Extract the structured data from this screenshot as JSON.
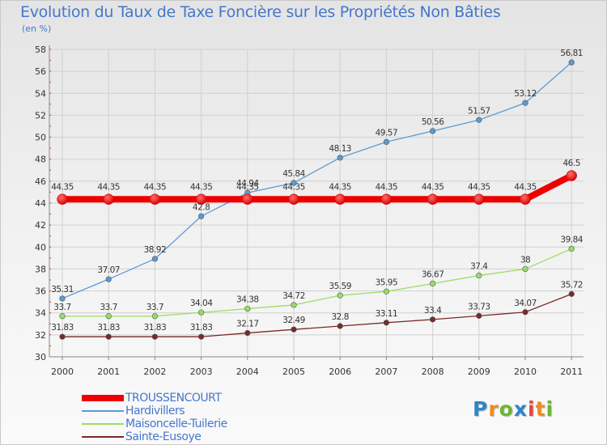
{
  "title": "Evolution du Taux de Taxe Foncière sur les Propriétés Non Bâties",
  "unit_label": "(en %)",
  "logo": {
    "letters": [
      "P",
      "r",
      "o",
      "x",
      "i",
      "t",
      "i"
    ],
    "colors": [
      "#2d85c8",
      "#f08a1c",
      "#6ab533",
      "#2d85c8",
      "#e8453c",
      "#f08a1c",
      "#6ab533"
    ]
  },
  "chart_data": {
    "type": "line",
    "x": [
      "2000",
      "2001",
      "2002",
      "2003",
      "2004",
      "2005",
      "2006",
      "2007",
      "2008",
      "2009",
      "2010",
      "2011"
    ],
    "ylim": [
      30,
      58
    ],
    "yticks": [
      "30",
      "32",
      "34",
      "36",
      "38",
      "40",
      "42",
      "44",
      "46",
      "48",
      "50",
      "52",
      "54",
      "56",
      "58"
    ],
    "grid": true,
    "legend_position": "bottom-left",
    "series": [
      {
        "name": "TROUSSENCOURT",
        "color": "#ee0000",
        "values": [
          44.35,
          44.35,
          44.35,
          44.35,
          44.35,
          44.35,
          44.35,
          44.35,
          44.35,
          44.35,
          44.35,
          46.5
        ],
        "labels": [
          "44.35",
          "44.35",
          "44.35",
          "44.35",
          "44.35",
          "44.35",
          "44.35",
          "44.35",
          "44.35",
          "44.35",
          "44.35",
          "46.5"
        ]
      },
      {
        "name": "Hardivillers",
        "color": "#5b9bd5",
        "values": [
          35.31,
          37.07,
          38.92,
          42.8,
          44.94,
          45.84,
          48.13,
          49.57,
          50.56,
          51.57,
          53.12,
          56.81
        ],
        "labels": [
          "35.31",
          "37.07",
          "38.92",
          "42.8",
          "44.94",
          "45.84",
          "48.13",
          "49.57",
          "50.56",
          "51.57",
          "53.12",
          "56.81"
        ]
      },
      {
        "name": "Maisoncelle-Tuilerie",
        "color": "#99dd66",
        "values": [
          33.7,
          33.7,
          33.7,
          34.04,
          34.38,
          34.72,
          35.59,
          35.95,
          36.67,
          37.4,
          38.0,
          39.84
        ],
        "labels": [
          "33.7",
          "33.7",
          "33.7",
          "34.04",
          "34.38",
          "34.72",
          "35.59",
          "35.95",
          "36.67",
          "37.4",
          "38",
          "39.84"
        ]
      },
      {
        "name": "Sainte-Eusoye",
        "color": "#7a2a2a",
        "values": [
          31.83,
          31.83,
          31.83,
          31.83,
          32.17,
          32.49,
          32.8,
          33.11,
          33.4,
          33.73,
          34.07,
          35.72
        ],
        "labels": [
          "31.83",
          "31.83",
          "31.83",
          "31.83",
          "32.17",
          "32.49",
          "32.8",
          "33.11",
          "33.4",
          "33.73",
          "34.07",
          "35.72"
        ]
      }
    ]
  }
}
